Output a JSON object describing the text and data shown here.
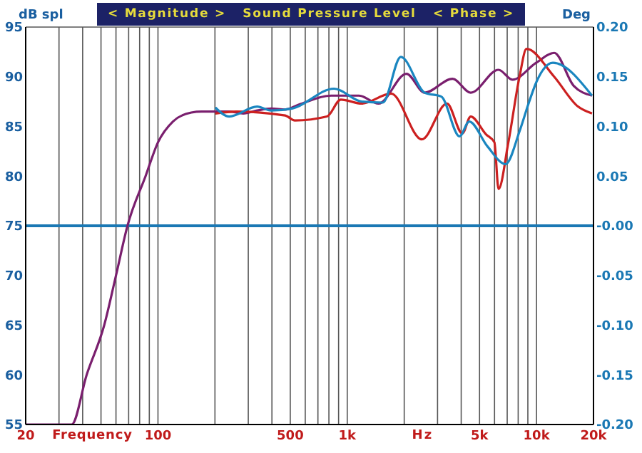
{
  "chart_data": {
    "type": "line",
    "title": "< Magnitude >   Sound Pressure Level   < Phase >",
    "xlabel": "Frequency",
    "ylabel": "dB spl",
    "y2label": "Deg",
    "annotations": [
      "Hz"
    ],
    "log": "x",
    "grid": true,
    "marker": "none",
    "line_style": "solid",
    "xlim": [
      20,
      20000
    ],
    "xticks": [
      20,
      {
        "value": 30,
        "label": null
      },
      {
        "value": 40,
        "label": null
      },
      {
        "value": 50,
        "label": null
      },
      {
        "value": 60,
        "label": null
      },
      {
        "value": 70,
        "label": null
      },
      {
        "value": 80,
        "label": null
      },
      {
        "value": 90,
        "label": null
      },
      100,
      {
        "value": 200,
        "label": null
      },
      {
        "value": 300,
        "label": null
      },
      {
        "value": 400,
        "label": null
      },
      500,
      {
        "value": 600,
        "label": null
      },
      {
        "value": 700,
        "label": null
      },
      {
        "value": 800,
        "label": null
      },
      {
        "value": 900,
        "label": null
      },
      {
        "value": 1000,
        "label": "1k"
      },
      {
        "value": 2000,
        "label": null
      },
      {
        "value": 3000,
        "label": null
      },
      {
        "value": 4000,
        "label": null
      },
      {
        "value": 5000,
        "label": "5k"
      },
      {
        "value": 6000,
        "label": null
      },
      {
        "value": 7000,
        "label": null
      },
      {
        "value": 8000,
        "label": null
      },
      {
        "value": 9000,
        "label": null
      },
      {
        "value": 10000,
        "label": "10k"
      },
      {
        "value": 20000,
        "label": "20k"
      }
    ],
    "ylim": [
      55,
      95
    ],
    "yticks": [
      55,
      60,
      65,
      70,
      75,
      80,
      85,
      90,
      95
    ],
    "y2lim": [
      -0.2,
      0.2
    ],
    "y2ticks": [
      {
        "value": -0.2,
        "label": "-0.20"
      },
      {
        "value": -0.15,
        "label": "-0.15"
      },
      {
        "value": -0.1,
        "label": "-0.10"
      },
      {
        "value": -0.05,
        "label": "-0.05"
      },
      {
        "value": 0,
        "label": "-0.00"
      },
      {
        "value": 0.05,
        "label": "0.05"
      },
      {
        "value": 0.1,
        "label": "0.10"
      },
      {
        "value": 0.15,
        "label": "0.15"
      },
      {
        "value": 0.2,
        "label": "0.20"
      }
    ],
    "ref_lines": [
      {
        "axis": "y",
        "value": 75,
        "color": "#1a78b4"
      }
    ],
    "series": [
      {
        "color": "#7a1f6e",
        "x": [
          20,
          35,
          42,
          52,
          60,
          69,
          86,
          100,
          120,
          150,
          170,
          201,
          238,
          282,
          334,
          396,
          470,
          556,
          822,
          1154,
          1463,
          2056,
          2564,
          3600,
          4490,
          6300,
          7460,
          9950,
          12400,
          15700,
          19640
        ],
        "values": [
          55,
          55,
          60,
          65,
          70,
          75,
          80,
          83.4,
          85.5,
          86.4,
          86.5,
          86.5,
          86.5,
          86.3,
          86.6,
          86.8,
          86.7,
          87.2,
          88.1,
          88.1,
          87.3,
          90.3,
          88.4,
          89.8,
          88.4,
          90.7,
          89.7,
          91.4,
          92.4,
          89.1,
          88.1
        ]
      },
      {
        "color": "#cc2020",
        "x": [
          201,
          259,
          470,
          529,
          782,
          925,
          1194,
          1706,
          2477,
          3364,
          4055,
          4490,
          5410,
          5990,
          6300,
          7100,
          8130,
          8850,
          12400,
          16560,
          19640
        ],
        "values": [
          86.3,
          86.5,
          86.1,
          85.6,
          86.0,
          87.7,
          87.3,
          88.3,
          83.7,
          87.3,
          84.3,
          86.0,
          84.2,
          83.4,
          78.7,
          83.4,
          90.0,
          92.8,
          90.0,
          87.0,
          86.3
        ]
      },
      {
        "color": "#1a86c0",
        "x": [
          201,
          238,
          334,
          396,
          512,
          851,
          1194,
          1541,
          1919,
          2564,
          3141,
          3920,
          4410,
          5500,
          6860,
          8130,
          9150,
          10000,
          12200,
          19640
        ],
        "values": [
          86.9,
          86.0,
          87.0,
          86.6,
          86.8,
          88.8,
          87.5,
          87.4,
          92.0,
          88.4,
          88.0,
          84.0,
          85.5,
          83.0,
          81.2,
          84.5,
          87.5,
          89.5,
          91.4,
          88.1
        ]
      }
    ]
  }
}
